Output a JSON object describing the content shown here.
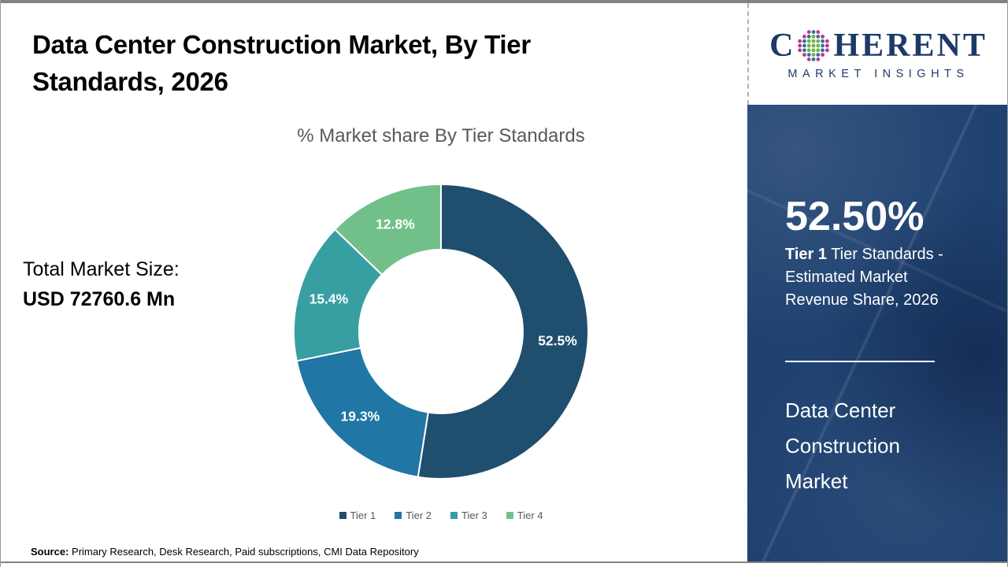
{
  "header": {
    "title": "Data Center Construction Market, By Tier Standards, 2026"
  },
  "logo": {
    "brand_first_letter": "C",
    "brand_rest": "HERENT",
    "subtitle": "MARKET INSIGHTS",
    "navy": "#1c3a68"
  },
  "left_panel": {
    "total_label": "Total Market Size:",
    "total_value": "USD 72760.6 Mn"
  },
  "chart_data": {
    "type": "pie",
    "subtype": "donut",
    "title": "% Market share By Tier Standards",
    "categories": [
      "Tier 1",
      "Tier 2",
      "Tier 3",
      "Tier 4"
    ],
    "values": [
      52.5,
      19.3,
      15.4,
      12.8
    ],
    "labels": [
      "52.5%",
      "19.3%",
      "15.4%",
      "12.8%"
    ],
    "colors": [
      "#1F4E6E",
      "#2076A5",
      "#379FA1",
      "#72C089"
    ],
    "start_angle_deg": 0,
    "direction": "clockwise",
    "inner_radius_ratio": 0.556,
    "outer_radius_px": 187,
    "legend_position": "bottom",
    "label_color": "#ffffff"
  },
  "sidebar": {
    "bg_color": "#1f4271",
    "stat_value": "52.50%",
    "stat_label_bold": "Tier 1",
    "stat_label_rest": " Tier Standards - Estimated Market Revenue Share, 2026",
    "market_name": "Data Center Construction Market"
  },
  "footer": {
    "source_label": "Source:",
    "source_text": " Primary Research, Desk Research, Paid subscriptions, CMI Data Repository"
  }
}
